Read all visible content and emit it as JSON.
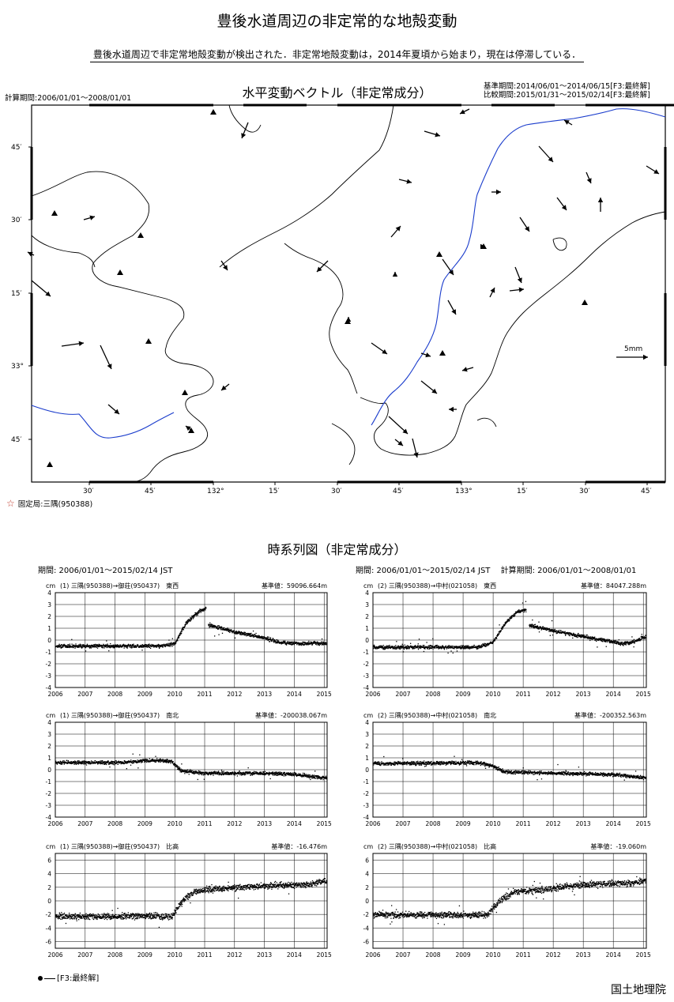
{
  "page": {
    "title": "豊後水道周辺の非定常的な地殻変動",
    "summary": "豊後水道周辺で非定常地殻変動が検出された．非定常地殻変動は，2014年夏頃から始まり，現在は停滞している．",
    "organization": "国土地理院"
  },
  "map": {
    "title": "水平変動ベクトル（非定常成分）",
    "calc_period": "計算期間:2006/01/01～2008/01/01",
    "ref_period": "基準期間:2014/06/01～2014/06/15[F3:最終解]",
    "cmp_period": "比較期間:2015/01/31～2015/02/14[F3:最終解]",
    "fixed_station": "固定局:三隅(950388)",
    "scale_label": "5mm",
    "lat_ticks": [
      "45′",
      "30′",
      "15′",
      "33°",
      "45′"
    ],
    "lon_ticks": [
      "30′",
      "45′",
      "132°",
      "15′",
      "30′",
      "45′",
      "133°",
      "15′",
      "30′",
      "45′"
    ],
    "colors": {
      "coast": "#000000",
      "prefecture_border": "#1a3ccc",
      "fixed_star": "#c0392b"
    },
    "vectors": [
      [
        314,
        155,
        -8,
        20
      ],
      [
        537,
        166,
        20,
        6
      ],
      [
        594,
        138,
        -12,
        6
      ],
      [
        724,
        158,
        -10,
        -6
      ],
      [
        682,
        185,
        18,
        20
      ],
      [
        742,
        218,
        6,
        14
      ],
      [
        818,
        210,
        16,
        10
      ],
      [
        505,
        227,
        16,
        4
      ],
      [
        622,
        243,
        12,
        0
      ],
      [
        705,
        250,
        12,
        16
      ],
      [
        658,
        275,
        12,
        18
      ],
      [
        760,
        268,
        0,
        -18
      ],
      [
        495,
        300,
        12,
        -14
      ],
      [
        106,
        278,
        14,
        -4
      ],
      [
        43,
        323,
        -8,
        -4
      ],
      [
        40,
        355,
        24,
        20
      ],
      [
        280,
        330,
        8,
        12
      ],
      [
        415,
        330,
        -14,
        14
      ],
      [
        560,
        328,
        14,
        20
      ],
      [
        500,
        350,
        0,
        -6
      ],
      [
        610,
        312,
        4,
        0
      ],
      [
        652,
        338,
        8,
        20
      ],
      [
        645,
        368,
        18,
        -2
      ],
      [
        620,
        376,
        6,
        -12
      ],
      [
        567,
        380,
        10,
        18
      ],
      [
        441,
        405,
        0,
        -4
      ],
      [
        470,
        434,
        20,
        14
      ],
      [
        533,
        447,
        12,
        4
      ],
      [
        127,
        437,
        14,
        30
      ],
      [
        78,
        438,
        28,
        -4
      ],
      [
        599,
        465,
        -14,
        4
      ],
      [
        290,
        486,
        -10,
        8
      ],
      [
        533,
        482,
        20,
        16
      ],
      [
        137,
        512,
        14,
        12
      ],
      [
        492,
        527,
        24,
        22
      ],
      [
        522,
        555,
        6,
        24
      ],
      [
        578,
        518,
        -10,
        0
      ],
      [
        243,
        545,
        -8,
        -6
      ],
      [
        500,
        556,
        10,
        8
      ]
    ],
    "triangles": [
      [
        69,
        270
      ],
      [
        178,
        298
      ],
      [
        152,
        345
      ],
      [
        188,
        432
      ],
      [
        234,
        497
      ],
      [
        270,
        142
      ],
      [
        440,
        407
      ],
      [
        556,
        322
      ],
      [
        560,
        447
      ],
      [
        740,
        383
      ],
      [
        612,
        312
      ],
      [
        63,
        588
      ],
      [
        242,
        545
      ]
    ]
  },
  "timeseries": {
    "title": "時系列図（非定常成分）",
    "header_left": "期間: 2006/01/01～2015/02/14 JST",
    "header_right": "期間: 2006/01/01～2015/02/14 JST　 計算期間: 2006/01/01～2008/01/01",
    "legend": "[F3:最終解]",
    "unit": "cm"
  },
  "chart_data": [
    {
      "type": "scatter",
      "id": "p1",
      "title": "(1) 三隅(950388)→御荘(950437)　東西",
      "base_value": "基準値：59096.664m",
      "ylabel": "cm",
      "ylim": [
        -4,
        4
      ],
      "yticks": [
        4,
        3,
        2,
        1,
        0,
        -1,
        -2,
        -3,
        -4
      ],
      "xlim": [
        2006,
        2015.1
      ],
      "xticks": [
        "2006",
        "2007",
        "2008",
        "2009",
        "2010",
        "2011",
        "2012",
        "2013",
        "2014",
        "2015"
      ],
      "trend": [
        [
          2006,
          -0.5
        ],
        [
          2009.5,
          -0.5
        ],
        [
          2010.0,
          -0.3
        ],
        [
          2010.4,
          1.5
        ],
        [
          2010.8,
          2.4
        ],
        [
          2011.05,
          2.7
        ],
        [
          2011.1,
          1.3
        ],
        [
          2012,
          0.7
        ],
        [
          2013,
          0.2
        ],
        [
          2013.5,
          -0.2
        ],
        [
          2014.3,
          -0.3
        ],
        [
          2014.6,
          -0.25
        ],
        [
          2015.1,
          -0.3
        ]
      ],
      "gap": [
        2011.05,
        2011.12
      ]
    },
    {
      "type": "scatter",
      "id": "p2",
      "title": "(2) 三隅(950388)→中村(021058)　東西",
      "base_value": "基準値：84047.288m",
      "ylabel": "cm",
      "ylim": [
        -4,
        4
      ],
      "yticks": [
        4,
        3,
        2,
        1,
        0,
        -1,
        -2,
        -3,
        -4
      ],
      "xlim": [
        2006,
        2015.1
      ],
      "xticks": [
        "2006",
        "2007",
        "2008",
        "2009",
        "2010",
        "2011",
        "2012",
        "2013",
        "2014",
        "2015"
      ],
      "trend": [
        [
          2006,
          -0.6
        ],
        [
          2009.5,
          -0.6
        ],
        [
          2010.0,
          -0.2
        ],
        [
          2010.4,
          1.4
        ],
        [
          2010.8,
          2.4
        ],
        [
          2011.1,
          2.6
        ],
        [
          2011.12,
          1.3
        ],
        [
          2012,
          0.8
        ],
        [
          2013,
          0.3
        ],
        [
          2014.3,
          -0.3
        ],
        [
          2014.6,
          -0.2
        ],
        [
          2015.1,
          0.3
        ]
      ],
      "gap": [
        2011.1,
        2011.2
      ]
    },
    {
      "type": "scatter",
      "id": "p3",
      "title": "(1) 三隅(950388)→御荘(950437)　南北",
      "base_value": "基準値：-200038.067m",
      "ylabel": "cm",
      "ylim": [
        -4,
        4
      ],
      "yticks": [
        4,
        3,
        2,
        1,
        0,
        -1,
        -2,
        -3,
        -4
      ],
      "xlim": [
        2006,
        2015.1
      ],
      "xticks": [
        "2006",
        "2007",
        "2008",
        "2009",
        "2010",
        "2011",
        "2012",
        "2013",
        "2014",
        "2015"
      ],
      "trend": [
        [
          2006,
          0.6
        ],
        [
          2008,
          0.6
        ],
        [
          2009.5,
          0.8
        ],
        [
          2009.9,
          0.7
        ],
        [
          2010.2,
          -0.1
        ],
        [
          2011,
          -0.3
        ],
        [
          2013,
          -0.3
        ],
        [
          2014,
          -0.4
        ],
        [
          2015.1,
          -0.7
        ]
      ],
      "gap": null
    },
    {
      "type": "scatter",
      "id": "p4",
      "title": "(2) 三隅(950388)→中村(021058)　南北",
      "base_value": "基準値：-200352.563m",
      "ylabel": "cm",
      "ylim": [
        -4,
        4
      ],
      "yticks": [
        4,
        3,
        2,
        1,
        0,
        -1,
        -2,
        -3,
        -4
      ],
      "xlim": [
        2006,
        2015.1
      ],
      "xticks": [
        "2006",
        "2007",
        "2008",
        "2009",
        "2010",
        "2011",
        "2012",
        "2013",
        "2014",
        "2015"
      ],
      "trend": [
        [
          2006,
          0.5
        ],
        [
          2009.5,
          0.6
        ],
        [
          2010.0,
          0.3
        ],
        [
          2010.4,
          -0.2
        ],
        [
          2012,
          -0.3
        ],
        [
          2014,
          -0.4
        ],
        [
          2015.1,
          -0.7
        ]
      ],
      "gap": null
    },
    {
      "type": "scatter",
      "id": "p5",
      "title": "(1) 三隅(950388)→御荘(950437)　比高",
      "base_value": "基準値：-16.476m",
      "ylabel": "cm",
      "ylim": [
        -7,
        7
      ],
      "yticks": [
        6,
        4,
        2,
        0,
        -2,
        -4,
        -6
      ],
      "xlim": [
        2006,
        2015.1
      ],
      "xticks": [
        "2006",
        "2007",
        "2008",
        "2009",
        "2010",
        "2011",
        "2012",
        "2013",
        "2014",
        "2015"
      ],
      "trend": [
        [
          2006,
          -2.3
        ],
        [
          2009.9,
          -2.3
        ],
        [
          2010.3,
          0.2
        ],
        [
          2010.7,
          1.4
        ],
        [
          2011.5,
          1.8
        ],
        [
          2013,
          2.2
        ],
        [
          2014.5,
          2.4
        ],
        [
          2015.1,
          3.0
        ]
      ],
      "gap": null
    },
    {
      "type": "scatter",
      "id": "p6",
      "title": "(2) 三隅(950388)→中村(021058)　比高",
      "base_value": "基準値：-19.060m",
      "ylabel": "cm",
      "ylim": [
        -7,
        7
      ],
      "yticks": [
        6,
        4,
        2,
        0,
        -2,
        -4,
        -6
      ],
      "xlim": [
        2006,
        2015.1
      ],
      "xticks": [
        "2006",
        "2007",
        "2008",
        "2009",
        "2010",
        "2011",
        "2012",
        "2013",
        "2014",
        "2015"
      ],
      "trend": [
        [
          2006,
          -2.1
        ],
        [
          2009.8,
          -2.1
        ],
        [
          2010.3,
          0.3
        ],
        [
          2010.7,
          1.3
        ],
        [
          2011.5,
          1.6
        ],
        [
          2013,
          2.4
        ],
        [
          2014.5,
          2.6
        ],
        [
          2015.1,
          3.0
        ]
      ],
      "gap": null
    }
  ]
}
